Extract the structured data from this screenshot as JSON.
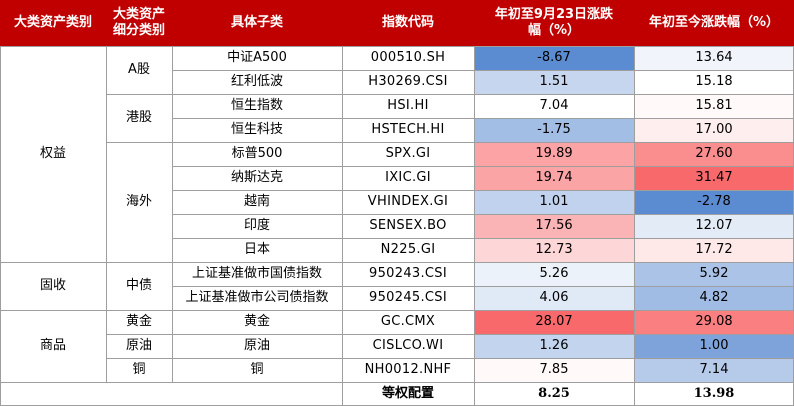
{
  "headers": {
    "major_class": "大类资产类别",
    "sub_class": "大类资产细分类别",
    "asset": "具体子类",
    "code": "指数代码",
    "ytd_sep23": "年初至9月23日涨跌幅（%）",
    "ytd_now": "年初至今涨跌幅（%）"
  },
  "groups": [
    {
      "label": "权益"
    },
    {
      "label": "固收"
    },
    {
      "label": "商品"
    }
  ],
  "subgroups": [
    {
      "label": "A股"
    },
    {
      "label": "港股"
    },
    {
      "label": "海外"
    },
    {
      "label": "中债"
    },
    {
      "label": "黄金"
    },
    {
      "label": "原油"
    },
    {
      "label": "铜"
    }
  ],
  "rows": [
    {
      "name": "中证A500",
      "code": "000510.SH",
      "sep23": "-8.67",
      "now": "13.64"
    },
    {
      "name": "红利低波",
      "code": "H30269.CSI",
      "sep23": "1.51",
      "now": "15.18"
    },
    {
      "name": "恒生指数",
      "code": "HSI.HI",
      "sep23": "7.04",
      "now": "15.81"
    },
    {
      "name": "恒生科技",
      "code": "HSTECH.HI",
      "sep23": "-1.75",
      "now": "17.00"
    },
    {
      "name": "标普500",
      "code": "SPX.GI",
      "sep23": "19.89",
      "now": "27.60"
    },
    {
      "name": "纳斯达克",
      "code": "IXIC.GI",
      "sep23": "19.74",
      "now": "31.47"
    },
    {
      "name": "越南",
      "code": "VHINDEX.GI",
      "sep23": "1.01",
      "now": "-2.78"
    },
    {
      "name": "印度",
      "code": "SENSEX.BO",
      "sep23": "17.56",
      "now": "12.07"
    },
    {
      "name": "日本",
      "code": "N225.GI",
      "sep23": "12.73",
      "now": "17.72"
    },
    {
      "name": "上证基准做市国债指数",
      "code": "950243.CSI",
      "sep23": "5.26",
      "now": "5.92"
    },
    {
      "name": "上证基准做市公司债指数",
      "code": "950245.CSI",
      "sep23": "4.06",
      "now": "4.82"
    },
    {
      "name": "黄金",
      "code": "GC.CMX",
      "sep23": "28.07",
      "now": "29.08"
    },
    {
      "name": "原油",
      "code": "CISLCO.WI",
      "sep23": "1.26",
      "now": "1.00"
    },
    {
      "name": "铜",
      "code": "NH0012.NHF",
      "sep23": "7.85",
      "now": "7.14"
    }
  ],
  "footer": {
    "label": "等权配置",
    "sep23": "8.25",
    "now": "13.98"
  },
  "colors": {
    "header": "#c00000",
    "negative": "#5b8bd0",
    "positive": "#f8696b",
    "neutral": "#ffffff"
  }
}
